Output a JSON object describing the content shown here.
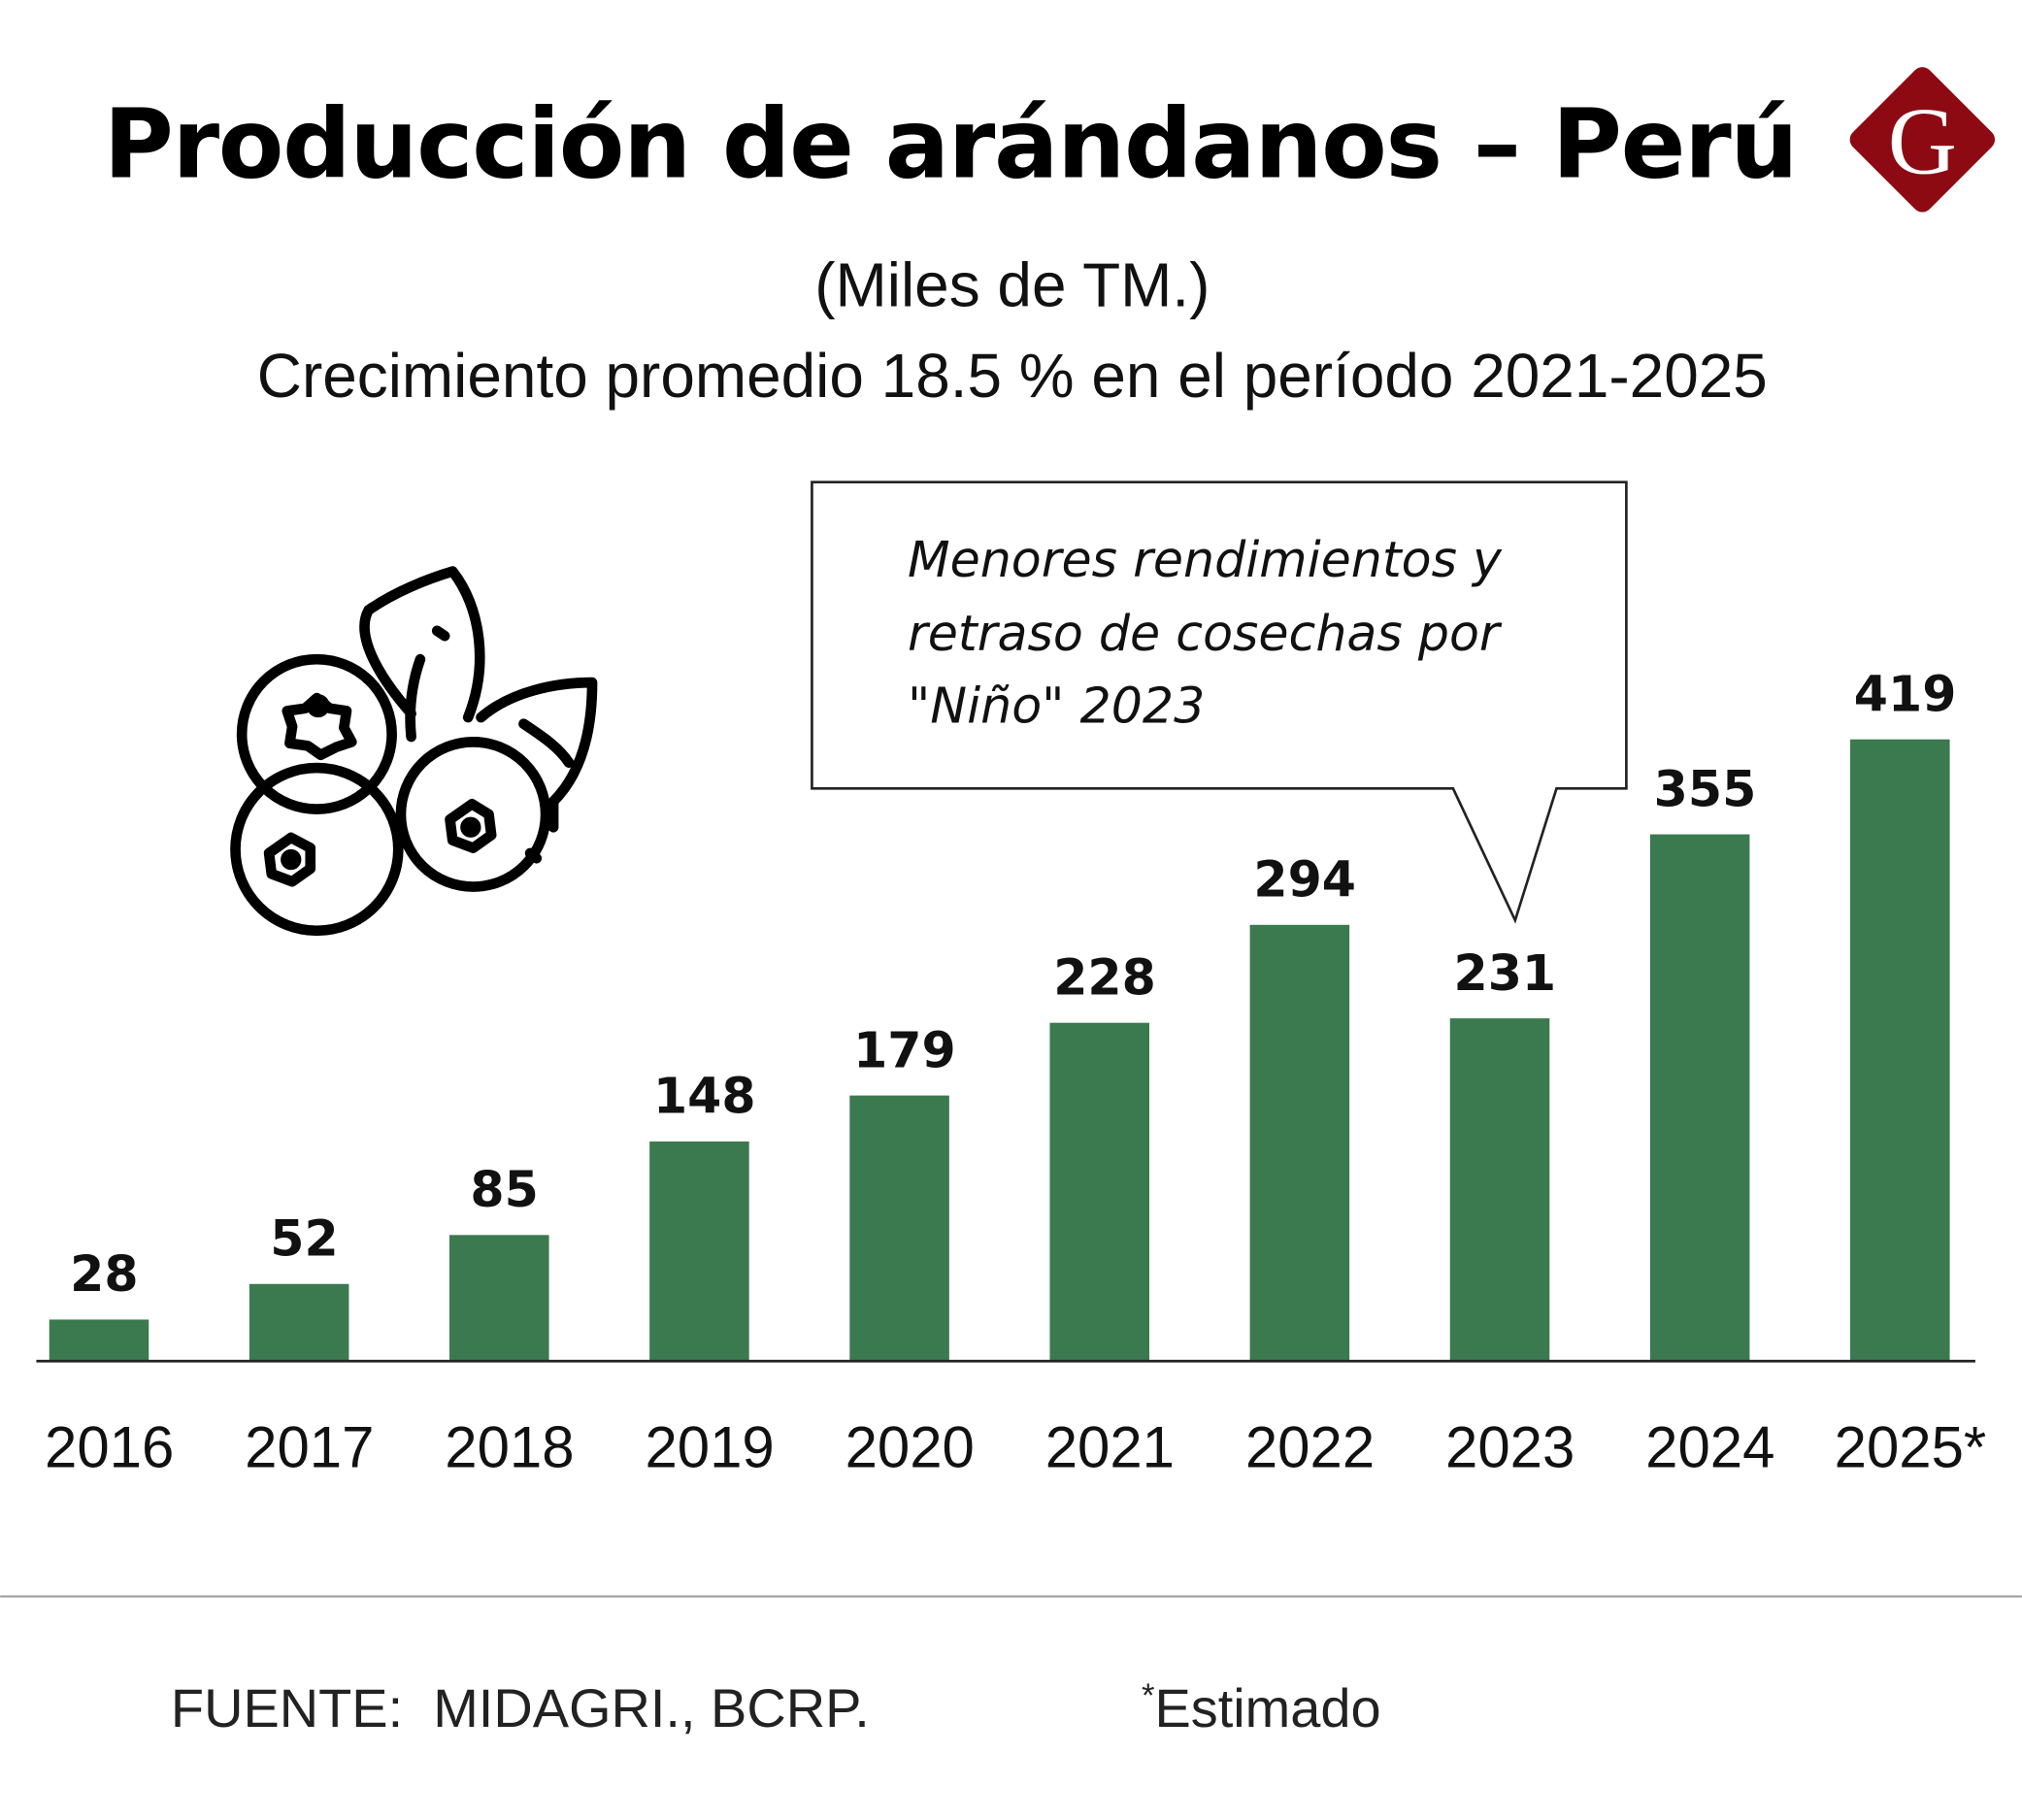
{
  "header": {
    "title": "Producción de arándanos – Perú",
    "unit": "(Miles de TM.)",
    "subtitle": "Crecimiento promedio 18.5 % en el período 2021-2025",
    "logo_letter": "G",
    "logo_color": "#8e0a12"
  },
  "chart_data": {
    "type": "bar",
    "title": "Producción de arándanos – Perú",
    "subtitle": "Crecimiento promedio 18.5 % en el período 2021-2025",
    "ylabel": "(Miles de TM.)",
    "categories": [
      "2016",
      "2017",
      "2018",
      "2019",
      "2020",
      "2021",
      "2022",
      "2023",
      "2024",
      "2025*"
    ],
    "values": [
      28,
      52,
      85,
      148,
      179,
      228,
      294,
      231,
      355,
      419
    ],
    "ylim": [
      0,
      419
    ],
    "grid": false,
    "bar_color": "#3a7a4e",
    "annotation": {
      "target": "2023",
      "lines": [
        "Menores rendimientos y",
        "retraso de cosechas por",
        "\"Niño\" 2023"
      ]
    }
  },
  "footer": {
    "source": "FUENTE:  MIDAGRI., BCRP.",
    "note_star": "*",
    "note": "Estimado"
  },
  "icons": {
    "illustration": "blueberries-icon"
  }
}
